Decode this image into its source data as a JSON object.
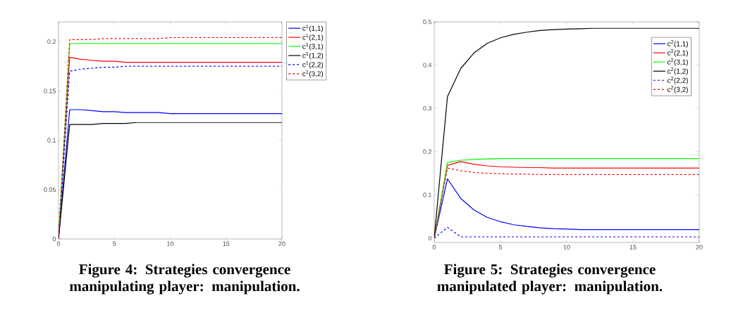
{
  "chart_data": [
    {
      "type": "line",
      "title": "Figure 4: Strategies convergence manipulating player: manipulation.",
      "x": [
        0,
        1,
        2,
        3,
        4,
        5,
        6,
        7,
        8,
        9,
        10,
        11,
        12,
        13,
        14,
        15,
        16,
        17,
        18,
        19,
        20
      ],
      "xlim": [
        0,
        20
      ],
      "xticks": [
        0,
        5,
        10,
        15,
        20
      ],
      "ylim": [
        0,
        0.22
      ],
      "yticks": [
        0,
        0.05,
        0.1,
        0.15,
        0.2
      ],
      "legend": "right",
      "series": [
        {
          "name": "c$^{1}$(1,1)",
          "color": "#0000ff",
          "line_style": "solid",
          "values": [
            0,
            0.131,
            0.131,
            0.13,
            0.129,
            0.129,
            0.128,
            0.128,
            0.128,
            0.128,
            0.127,
            0.127,
            0.127,
            0.127,
            0.127,
            0.127,
            0.127,
            0.127,
            0.127,
            0.127,
            0.127
          ]
        },
        {
          "name": "c$^{1}$(2,1)",
          "color": "#ff0000",
          "line_style": "solid",
          "values": [
            0,
            0.184,
            0.182,
            0.181,
            0.18,
            0.18,
            0.179,
            0.179,
            0.179,
            0.179,
            0.179,
            0.179,
            0.179,
            0.179,
            0.179,
            0.179,
            0.179,
            0.179,
            0.179,
            0.179,
            0.179
          ]
        },
        {
          "name": "c$^{1}$(3,1)",
          "color": "#00ff00",
          "line_style": "solid",
          "values": [
            0,
            0.198,
            0.198,
            0.198,
            0.198,
            0.198,
            0.198,
            0.198,
            0.198,
            0.198,
            0.198,
            0.198,
            0.198,
            0.198,
            0.198,
            0.198,
            0.198,
            0.198,
            0.198,
            0.198,
            0.198
          ]
        },
        {
          "name": "c$^{1}$(1,2)",
          "color": "#000000",
          "line_style": "solid",
          "values": [
            0,
            0.116,
            0.116,
            0.116,
            0.117,
            0.117,
            0.117,
            0.118,
            0.118,
            0.118,
            0.118,
            0.118,
            0.118,
            0.118,
            0.118,
            0.118,
            0.118,
            0.118,
            0.118,
            0.118,
            0.118
          ]
        },
        {
          "name": "c$^{1}$(2,2)",
          "color": "#0000ff",
          "line_style": "dashed",
          "values": [
            0,
            0.17,
            0.172,
            0.173,
            0.174,
            0.174,
            0.175,
            0.175,
            0.175,
            0.175,
            0.175,
            0.175,
            0.175,
            0.175,
            0.175,
            0.175,
            0.175,
            0.175,
            0.175,
            0.175,
            0.175
          ]
        },
        {
          "name": "c$^{1}$(3,2)",
          "color": "#ff0000",
          "line_style": "dashed",
          "values": [
            0,
            0.202,
            0.202,
            0.202,
            0.203,
            0.203,
            0.203,
            0.203,
            0.203,
            0.203,
            0.204,
            0.204,
            0.204,
            0.204,
            0.204,
            0.204,
            0.204,
            0.204,
            0.204,
            0.204,
            0.204
          ]
        }
      ]
    },
    {
      "type": "line",
      "title": "Figure 5: Strategies convergence manipulated player: manipulation.",
      "x": [
        0,
        1,
        2,
        3,
        4,
        5,
        6,
        7,
        8,
        9,
        10,
        11,
        12,
        13,
        14,
        15,
        16,
        17,
        18,
        19,
        20
      ],
      "xlim": [
        0,
        20
      ],
      "xticks": [
        0,
        5,
        10,
        15,
        20
      ],
      "ylim": [
        -0.01,
        0.5
      ],
      "yticks": [
        0,
        0.1,
        0.2,
        0.3,
        0.4,
        0.5
      ],
      "legend": "top right",
      "series": [
        {
          "name": "c$^{2}$(1,1)",
          "color": "#0000ff",
          "line_style": "solid",
          "values": [
            0,
            0.137,
            0.092,
            0.065,
            0.048,
            0.038,
            0.031,
            0.027,
            0.024,
            0.022,
            0.021,
            0.02,
            0.02,
            0.02,
            0.02,
            0.02,
            0.02,
            0.02,
            0.02,
            0.02,
            0.02
          ]
        },
        {
          "name": "c$^{2}$(2,1)",
          "color": "#ff0000",
          "line_style": "solid",
          "values": [
            0,
            0.168,
            0.177,
            0.171,
            0.167,
            0.165,
            0.164,
            0.163,
            0.163,
            0.162,
            0.162,
            0.162,
            0.162,
            0.162,
            0.162,
            0.162,
            0.162,
            0.162,
            0.162,
            0.162,
            0.162
          ]
        },
        {
          "name": "c$^{2}$(3,1)",
          "color": "#00ff00",
          "line_style": "solid",
          "values": [
            0,
            0.175,
            0.18,
            0.182,
            0.183,
            0.184,
            0.184,
            0.184,
            0.184,
            0.184,
            0.184,
            0.184,
            0.184,
            0.184,
            0.184,
            0.184,
            0.184,
            0.184,
            0.184,
            0.184,
            0.184
          ]
        },
        {
          "name": "c$^{2}$(1,2)",
          "color": "#000000",
          "line_style": "solid",
          "values": [
            0,
            0.327,
            0.392,
            0.428,
            0.45,
            0.463,
            0.471,
            0.476,
            0.48,
            0.482,
            0.483,
            0.484,
            0.485,
            0.485,
            0.485,
            0.485,
            0.485,
            0.485,
            0.485,
            0.485,
            0.485
          ]
        },
        {
          "name": "c$^{2}$(2,2)",
          "color": "#0000ff",
          "line_style": "dashed",
          "values": [
            0,
            0.025,
            0.003,
            0.003,
            0.003,
            0.003,
            0.003,
            0.003,
            0.003,
            0.003,
            0.003,
            0.003,
            0.003,
            0.003,
            0.003,
            0.003,
            0.003,
            0.003,
            0.003,
            0.003,
            0.003
          ]
        },
        {
          "name": "c$^{2}$(3,2)",
          "color": "#ff0000",
          "line_style": "dashed",
          "values": [
            0,
            0.162,
            0.156,
            0.152,
            0.15,
            0.149,
            0.148,
            0.148,
            0.147,
            0.147,
            0.147,
            0.147,
            0.147,
            0.147,
            0.147,
            0.147,
            0.147,
            0.147,
            0.147,
            0.147,
            0.147
          ]
        }
      ]
    }
  ]
}
